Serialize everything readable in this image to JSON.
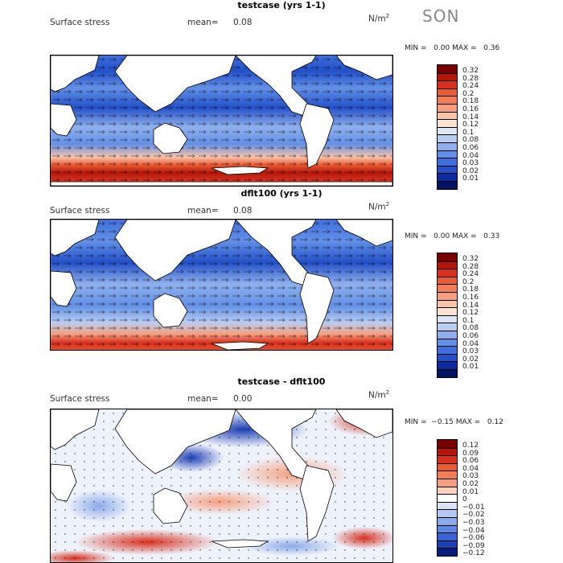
{
  "season": "SON",
  "panels": [
    {
      "title": "testcase (yrs 1-1)",
      "field": "Surface stress",
      "mean_label": "mean=",
      "mean": "0.08",
      "units": "N/m",
      "units_exp": "2",
      "min_label": "MIN =",
      "min": "0.00",
      "max_label": "MAX =",
      "max": "0.36",
      "colorbar": [
        "0.32",
        "0.28",
        "0.24",
        "0.2",
        "0.18",
        "0.16",
        "0.14",
        "0.12",
        "0.1",
        "0.08",
        "0.06",
        "0.04",
        "0.03",
        "0.02",
        "0.01"
      ]
    },
    {
      "title": "dflt100 (yrs 1-1)",
      "field": "Surface stress",
      "mean_label": "mean=",
      "mean": "0.08",
      "units": "N/m",
      "units_exp": "2",
      "min_label": "MIN =",
      "min": "0.00",
      "max_label": "MAX =",
      "max": "0.33",
      "colorbar": [
        "0.32",
        "0.28",
        "0.24",
        "0.2",
        "0.18",
        "0.16",
        "0.14",
        "0.12",
        "0.1",
        "0.08",
        "0.06",
        "0.04",
        "0.03",
        "0.02",
        "0.01"
      ]
    },
    {
      "title": "testcase - dflt100",
      "field": "Surface stress",
      "mean_label": "mean=",
      "mean": "0.00",
      "units": "N/m",
      "units_exp": "2",
      "min_label": "MIN =",
      "min": "−0.15",
      "max_label": "MAX =",
      "max": "0.12",
      "colorbar": [
        "0.12",
        "0.09",
        "0.06",
        "0.04",
        "0.03",
        "0.02",
        "0.01",
        "0",
        "−0.01",
        "−0.02",
        "−0.03",
        "−0.04",
        "−0.06",
        "−0.09",
        "−0.12"
      ]
    }
  ],
  "colors": {
    "abs_scale": [
      "#7a0000",
      "#b2180a",
      "#d7301f",
      "#ea5a33",
      "#f07d55",
      "#f59f80",
      "#f8c4aa",
      "#fbe3d4",
      "#dde6f7",
      "#b9cdf1",
      "#8fb0ec",
      "#6390e6",
      "#3f6fdc",
      "#2350c8",
      "#0c2c9e",
      "#04145f"
    ],
    "diff_scale": [
      "#7a0000",
      "#b2180a",
      "#d7301f",
      "#ea5a33",
      "#f07d55",
      "#f59f80",
      "#fbd2bd",
      "#ffffff",
      "#d8e3f6",
      "#b3c9f0",
      "#8aaae9",
      "#5f88e2",
      "#3a63d6",
      "#1d3fb4",
      "#061d7c"
    ],
    "land": "#ffffff",
    "coast": "#000000"
  }
}
